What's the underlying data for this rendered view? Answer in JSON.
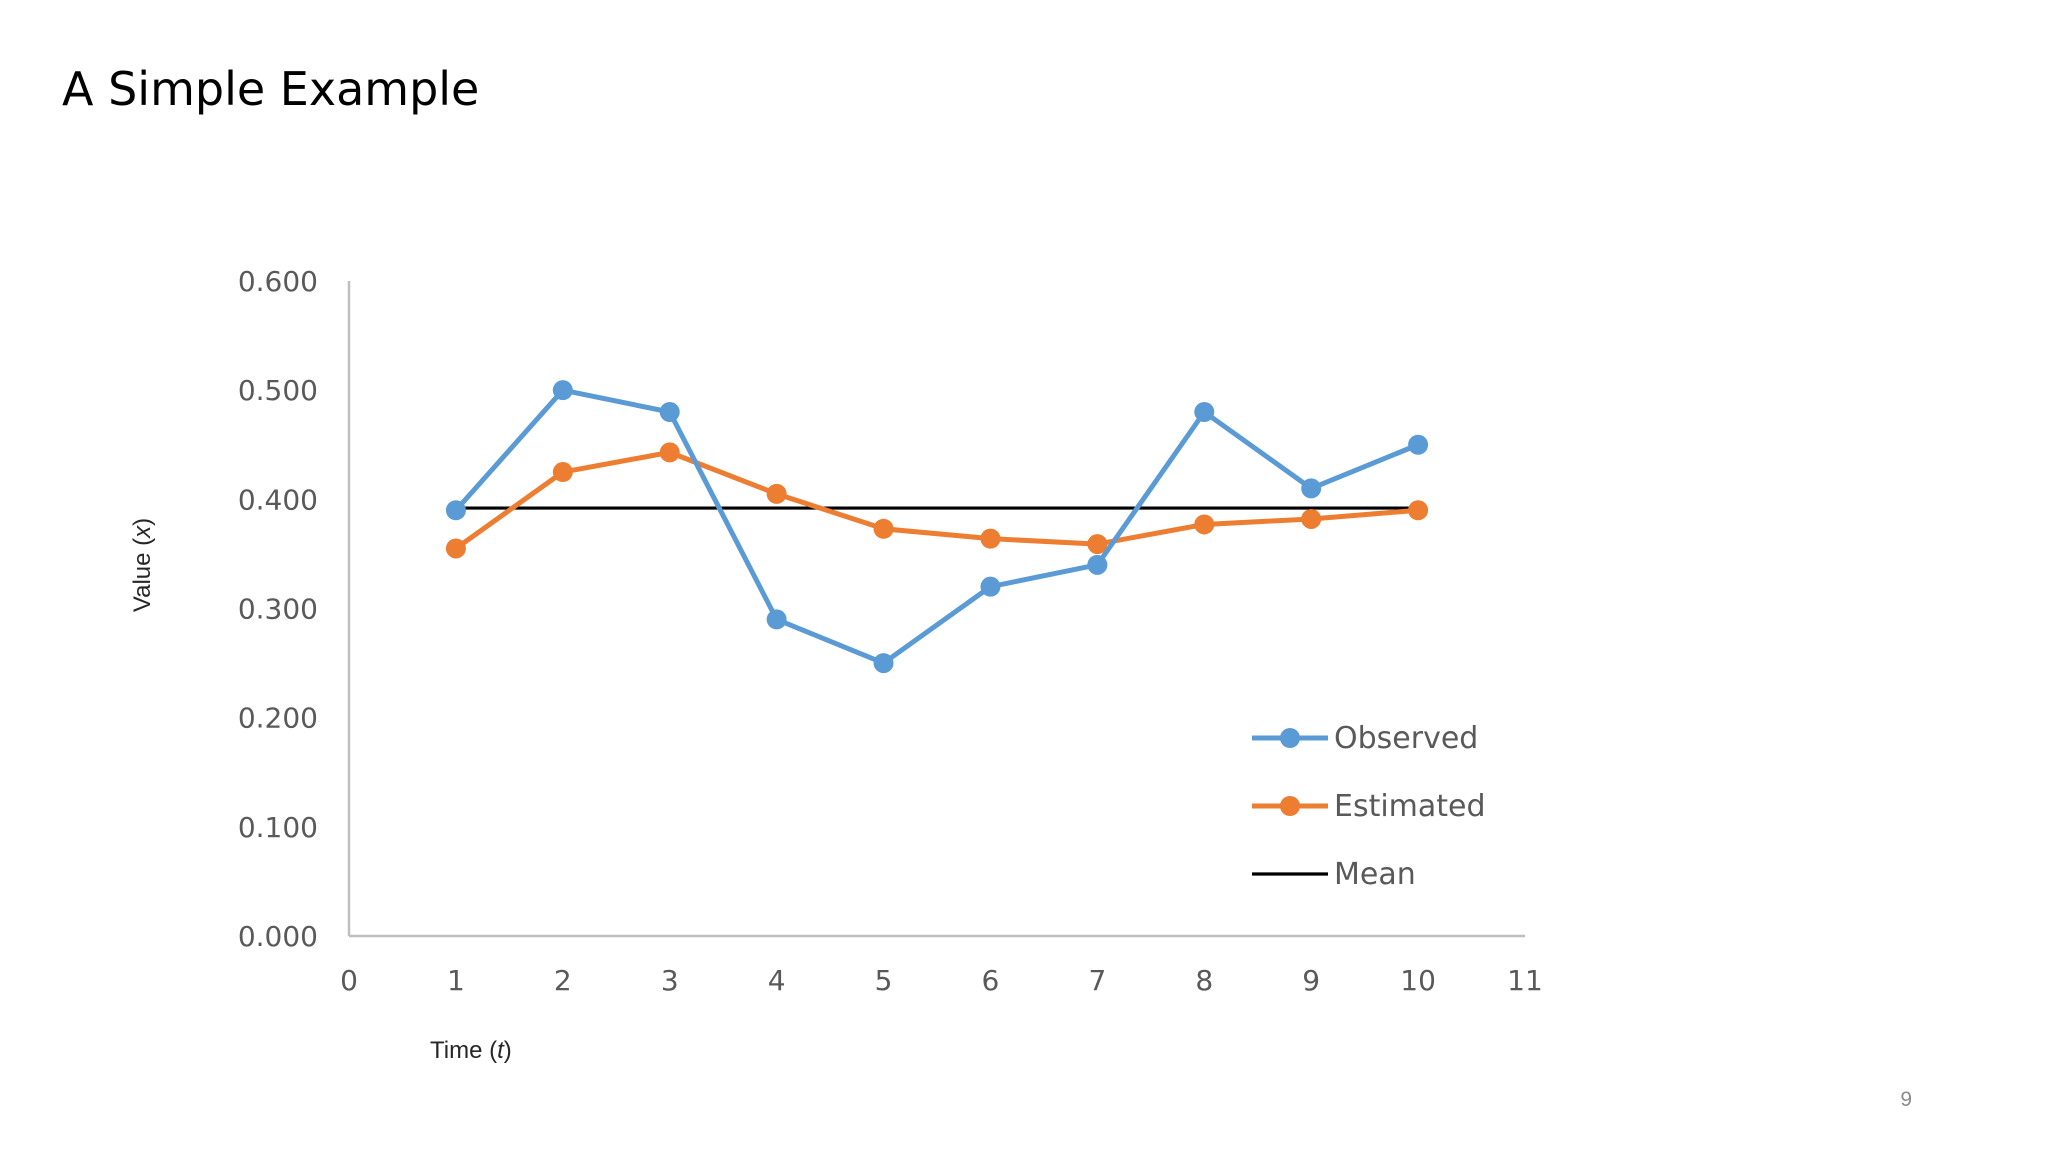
{
  "slide": {
    "title": "A Simple Example",
    "page_number": "9"
  },
  "chart_data": {
    "type": "line",
    "title": "",
    "xlabel": {
      "prefix": "Time (",
      "var": "t",
      "suffix": ")"
    },
    "ylabel": {
      "prefix": "Value (",
      "var": "x",
      "suffix": ")"
    },
    "xlim": [
      0,
      11
    ],
    "ylim": [
      0,
      0.6
    ],
    "x_ticks": [
      0,
      1,
      2,
      3,
      4,
      5,
      6,
      7,
      8,
      9,
      10,
      11
    ],
    "y_ticks": [
      0,
      0.1,
      0.2,
      0.3,
      0.4,
      0.5,
      0.6
    ],
    "y_tick_labels": [
      "0.000",
      "0.100",
      "0.200",
      "0.300",
      "0.400",
      "0.500",
      "0.600"
    ],
    "x": [
      1,
      2,
      3,
      4,
      5,
      6,
      7,
      8,
      9,
      10
    ],
    "series": [
      {
        "name": "Observed",
        "color": "#5b9bd5",
        "markers": true,
        "values": [
          0.39,
          0.5,
          0.48,
          0.29,
          0.25,
          0.32,
          0.34,
          0.48,
          0.41,
          0.45
        ]
      },
      {
        "name": "Estimated",
        "color": "#ed7d31",
        "markers": true,
        "values": [
          0.355,
          0.425,
          0.443,
          0.405,
          0.373,
          0.364,
          0.359,
          0.377,
          0.382,
          0.39
        ]
      },
      {
        "name": "Mean",
        "color": "#000000",
        "markers": false,
        "values": [
          0.392,
          0.392,
          0.392,
          0.392,
          0.392,
          0.392,
          0.392,
          0.392,
          0.392,
          0.392
        ]
      }
    ],
    "legend": {
      "position": "lower-right"
    },
    "grid": false
  }
}
